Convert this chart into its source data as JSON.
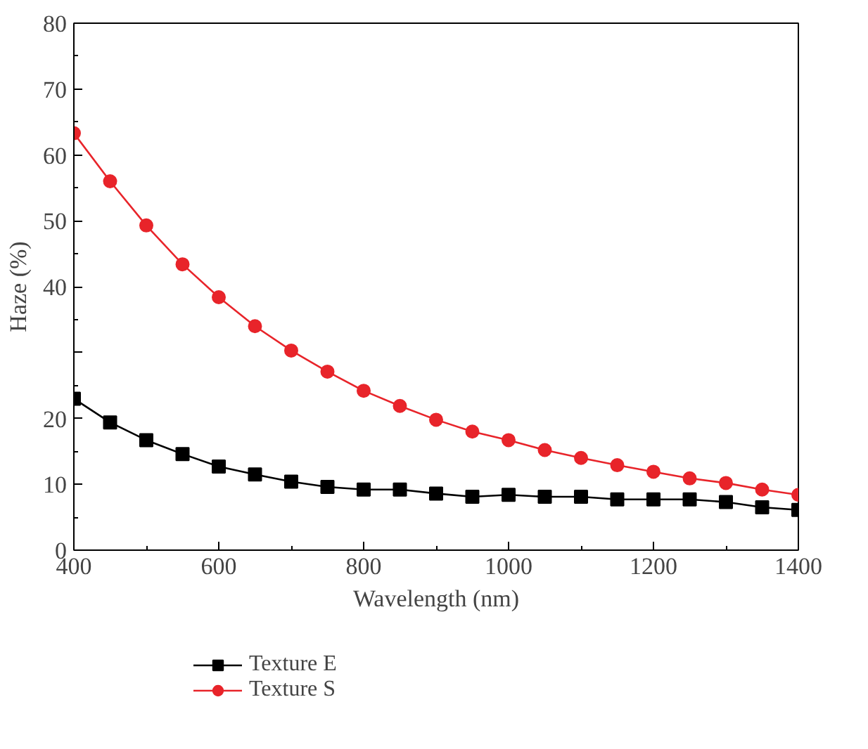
{
  "chart_data": {
    "type": "line",
    "xlabel": "Wavelength (nm)",
    "ylabel": "Haze (%)",
    "x": [
      400,
      450,
      500,
      550,
      600,
      650,
      700,
      750,
      800,
      850,
      900,
      950,
      1000,
      1050,
      1100,
      1150,
      1200,
      1250,
      1300,
      1350,
      1400
    ],
    "series": [
      {
        "name": "Texture E",
        "color": "#000000",
        "marker": "square",
        "values": [
          23.0,
          19.4,
          16.7,
          14.6,
          12.7,
          11.5,
          10.4,
          9.6,
          9.2,
          9.2,
          8.6,
          8.1,
          8.4,
          8.1,
          8.1,
          7.7,
          7.7,
          7.7,
          7.3,
          6.5,
          6.1
        ]
      },
      {
        "name": "Texture S",
        "color": "#e8242a",
        "marker": "circle",
        "values": [
          63.3,
          56.0,
          49.3,
          43.4,
          38.4,
          34.0,
          30.3,
          27.1,
          24.2,
          21.9,
          19.8,
          18.0,
          16.7,
          15.2,
          14.0,
          12.9,
          11.9,
          10.9,
          10.2,
          9.2,
          8.4
        ]
      }
    ],
    "xlim": [
      400,
      1400
    ],
    "ylim": [
      0,
      80
    ],
    "xticks": [
      400,
      600,
      800,
      1000,
      1200,
      1400
    ],
    "yticks": [
      0,
      10,
      20,
      {
        "value": 30,
        "label": null
      },
      40,
      50,
      60,
      70,
      80
    ],
    "grid": false,
    "legend": "bottom left",
    "line_style": "solid"
  }
}
